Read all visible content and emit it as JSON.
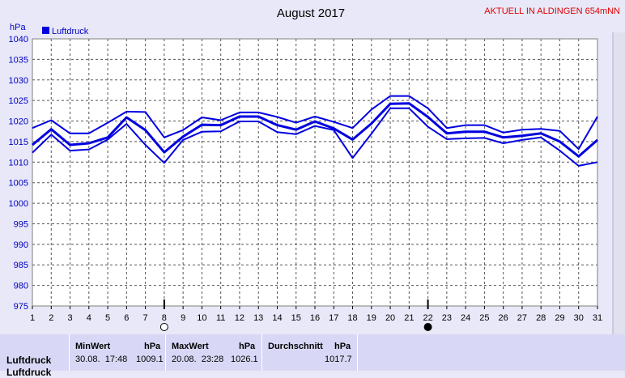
{
  "header": {
    "title": "August 2017",
    "station": "AKTUELL IN ALDINGEN 654mNN"
  },
  "chart_data": {
    "type": "line",
    "title": "August 2017",
    "ylabel": "hPa",
    "ylim": [
      975,
      1040
    ],
    "yticks": [
      975,
      980,
      985,
      990,
      995,
      1000,
      1005,
      1010,
      1015,
      1020,
      1025,
      1030,
      1035,
      1040
    ],
    "x": [
      1,
      2,
      3,
      4,
      5,
      6,
      7,
      8,
      9,
      10,
      11,
      12,
      13,
      14,
      15,
      16,
      17,
      18,
      19,
      20,
      21,
      22,
      23,
      24,
      25,
      26,
      27,
      28,
      29,
      30,
      31
    ],
    "legend": "top-left",
    "grid": true,
    "moon_markers": [
      {
        "day": 8,
        "phase": "full-moon"
      },
      {
        "day": 22,
        "phase": "new-moon"
      }
    ],
    "series": [
      {
        "name": "Luftdruck",
        "role": "max",
        "values": [
          1018.3,
          1020.2,
          1017.0,
          1017.0,
          1019.6,
          1022.3,
          1022.2,
          1016.0,
          1017.8,
          1020.9,
          1020.2,
          1022.1,
          1022.1,
          1021.0,
          1019.6,
          1021.1,
          1019.8,
          1018.3,
          1022.8,
          1026.1,
          1026.1,
          1023.1,
          1018.3,
          1019.0,
          1019.0,
          1017.2,
          1017.9,
          1018.1,
          1017.6,
          1013.2,
          1021.1
        ]
      },
      {
        "name": "Luftdruck",
        "role": "avg",
        "values": [
          1014.2,
          1018.0,
          1014.2,
          1014.6,
          1016.0,
          1020.9,
          1017.8,
          1012.4,
          1016.2,
          1019.1,
          1019.0,
          1021.1,
          1021.1,
          1019.0,
          1017.9,
          1019.9,
          1018.2,
          1015.5,
          1019.4,
          1024.2,
          1024.3,
          1021.0,
          1017.0,
          1017.4,
          1017.4,
          1016.0,
          1016.4,
          1017.0,
          1015.0,
          1011.4,
          1015.4
        ]
      },
      {
        "name": "Luftdruck",
        "role": "min",
        "values": [
          1012.3,
          1016.7,
          1012.8,
          1013.1,
          1015.5,
          1019.3,
          1014.2,
          1009.8,
          1015.4,
          1017.4,
          1017.5,
          1019.9,
          1019.9,
          1017.3,
          1016.8,
          1018.8,
          1017.8,
          1011.0,
          1016.9,
          1023.1,
          1023.1,
          1018.6,
          1015.6,
          1015.8,
          1015.9,
          1014.6,
          1015.4,
          1016.0,
          1012.8,
          1009.1,
          1010.0
        ]
      }
    ]
  },
  "stats": {
    "row_label": "Luftdruck",
    "row_label2": "Luftdruck",
    "min": {
      "header": "MinWert",
      "unit": "hPa",
      "time": "30.08.  17:48",
      "value": "1009.1"
    },
    "max": {
      "header": "MaxWert",
      "unit": "hPa",
      "time": "20.08.  23:28",
      "value": "1026.1"
    },
    "avg": {
      "header": "Durchschnitt",
      "unit": "hPa",
      "value": "1017.7"
    }
  },
  "colors": {
    "line": "#0000e0",
    "grid": "#555555",
    "title_red": "#e00000",
    "axis_text": "#0000c0"
  }
}
